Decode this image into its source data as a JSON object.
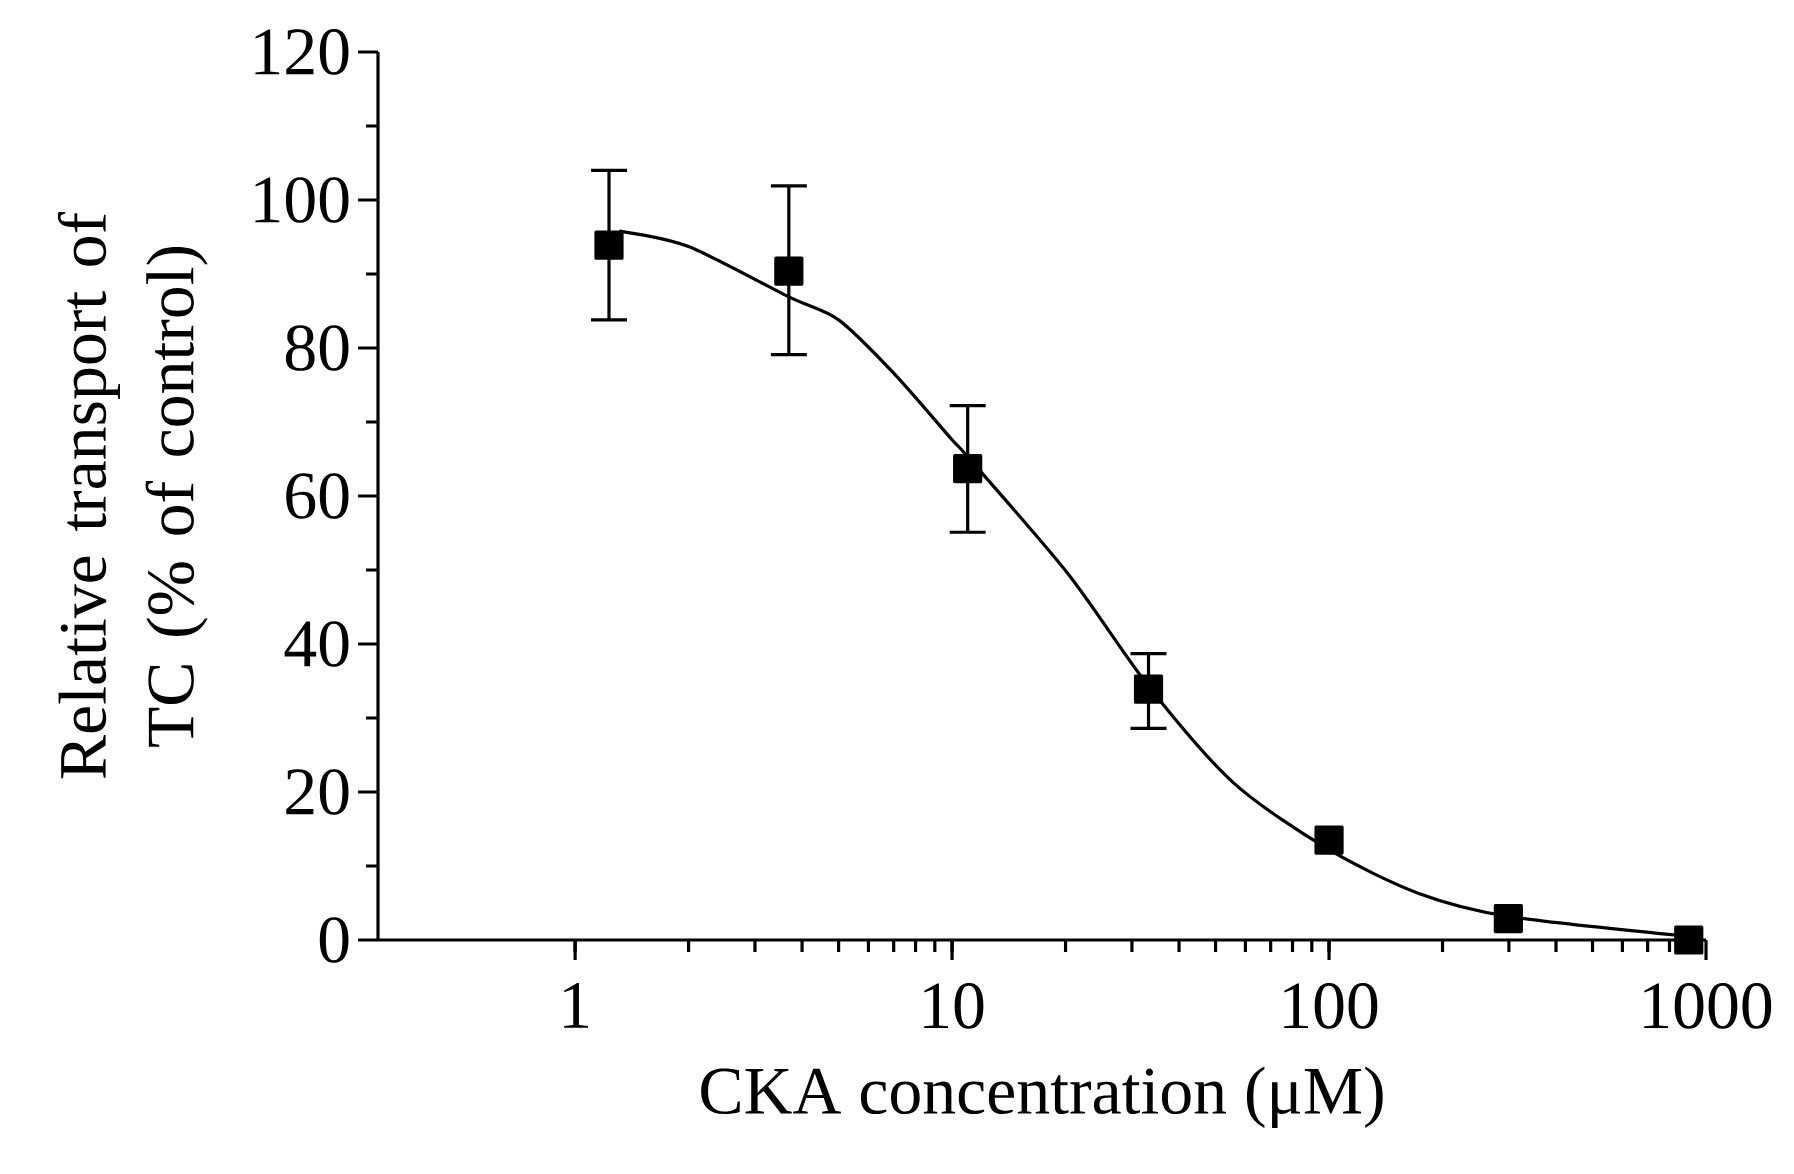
{
  "chart_data": {
    "type": "scatter",
    "xlabel": "CKA concentration (μM)",
    "ylabel": "Relative transport of TC (% of control)",
    "log": "x",
    "marker": "square",
    "xlim": [
      0.3,
      1000
    ],
    "ylim": [
      0,
      120
    ],
    "xticks": [
      1,
      10,
      100,
      1000
    ],
    "yticks": [
      0,
      20,
      40,
      60,
      80,
      100,
      120
    ],
    "series": [
      {
        "color": "#000000",
        "x": [
          1.23,
          3.69,
          11.0,
          33.2,
          100,
          299,
          900
        ],
        "values": [
          93.9,
          90.4,
          63.7,
          33.9,
          13.5,
          2.9,
          0
        ],
        "errors": [
          [
            83.8,
            104
          ],
          [
            79.1,
            101.9
          ],
          [
            55.1,
            72.2
          ],
          [
            28.6,
            38.7
          ],
          null,
          null,
          null
        ]
      },
      {
        "type": "line",
        "color": "#000000",
        "marker": "none",
        "line_style": "solid",
        "x": [
          1.31,
          2,
          3.69,
          5,
          7,
          10,
          11,
          20.3,
          33.2,
          55.9,
          100,
          173,
          299,
          900
        ],
        "values": [
          95.8,
          93.7,
          86.9,
          83.8,
          76.6,
          67.6,
          65.3,
          49.5,
          34.3,
          21.2,
          12.2,
          6.3,
          3.2,
          0.5
        ]
      }
    ]
  }
}
